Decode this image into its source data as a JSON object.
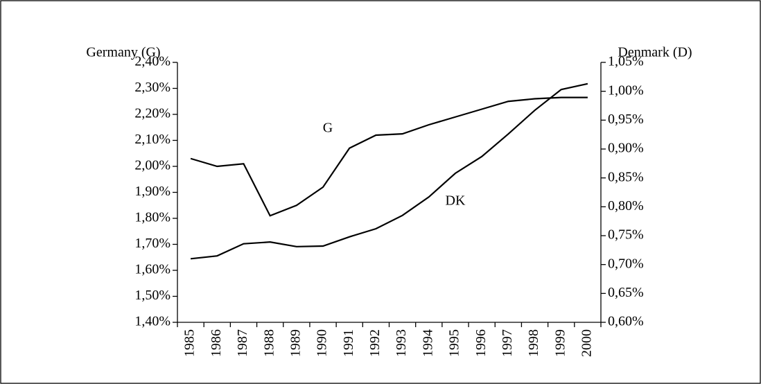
{
  "chart_data": {
    "type": "line",
    "y_label": "Germany (G)",
    "y2_label": "Denmark (D)",
    "annotations": [
      "G",
      "DK"
    ],
    "categories": [
      "1985",
      "1986",
      "1987",
      "1988",
      "1989",
      "1990",
      "1991",
      "1992",
      "1993",
      "1994",
      "1995",
      "1996",
      "1997",
      "1998",
      "1999",
      "2000"
    ],
    "series": [
      {
        "name": "G",
        "color": "#000000",
        "values": [
          2.03,
          2.0,
          2.01,
          1.81,
          1.85,
          1.92,
          2.07,
          2.12,
          2.125,
          2.16,
          2.19,
          2.22,
          2.25,
          2.26,
          2.265,
          2.265
        ]
      },
      {
        "name": "DK",
        "color": "#000000",
        "axis": "y2",
        "values": [
          0.71,
          0.715,
          0.736,
          0.739,
          0.731,
          0.732,
          0.748,
          0.762,
          0.785,
          0.817,
          0.858,
          0.887,
          0.926,
          0.967,
          1.003,
          1.013
        ]
      }
    ],
    "ylim": [
      1.4,
      2.4
    ],
    "yticks": [
      {
        "value": 1.4,
        "label": "1,40%"
      },
      {
        "value": 1.5,
        "label": "1,50%"
      },
      {
        "value": 1.6,
        "label": "1,60%"
      },
      {
        "value": 1.7,
        "label": "1,70%"
      },
      {
        "value": 1.8,
        "label": "1,80%"
      },
      {
        "value": 1.9,
        "label": "1,90%"
      },
      {
        "value": 2.0,
        "label": "2,00%"
      },
      {
        "value": 2.1,
        "label": "2,10%"
      },
      {
        "value": 2.2,
        "label": "2,20%"
      },
      {
        "value": 2.3,
        "label": "2,30%"
      },
      {
        "value": 2.4,
        "label": "2,40%"
      }
    ],
    "y2lim": [
      0.6,
      1.05
    ],
    "y2ticks": [
      {
        "value": 0.6,
        "label": "0,60%"
      },
      {
        "value": 0.65,
        "label": "0,65%"
      },
      {
        "value": 0.7,
        "label": "0,70%"
      },
      {
        "value": 0.75,
        "label": "0,75%"
      },
      {
        "value": 0.8,
        "label": "0,80%"
      },
      {
        "value": 0.85,
        "label": "0,85%"
      },
      {
        "value": 0.9,
        "label": "0,90%"
      },
      {
        "value": 0.95,
        "label": "0,95%"
      },
      {
        "value": 1.0,
        "label": "1,00%"
      },
      {
        "value": 1.05,
        "label": "1,05%"
      }
    ],
    "grid": false
  }
}
